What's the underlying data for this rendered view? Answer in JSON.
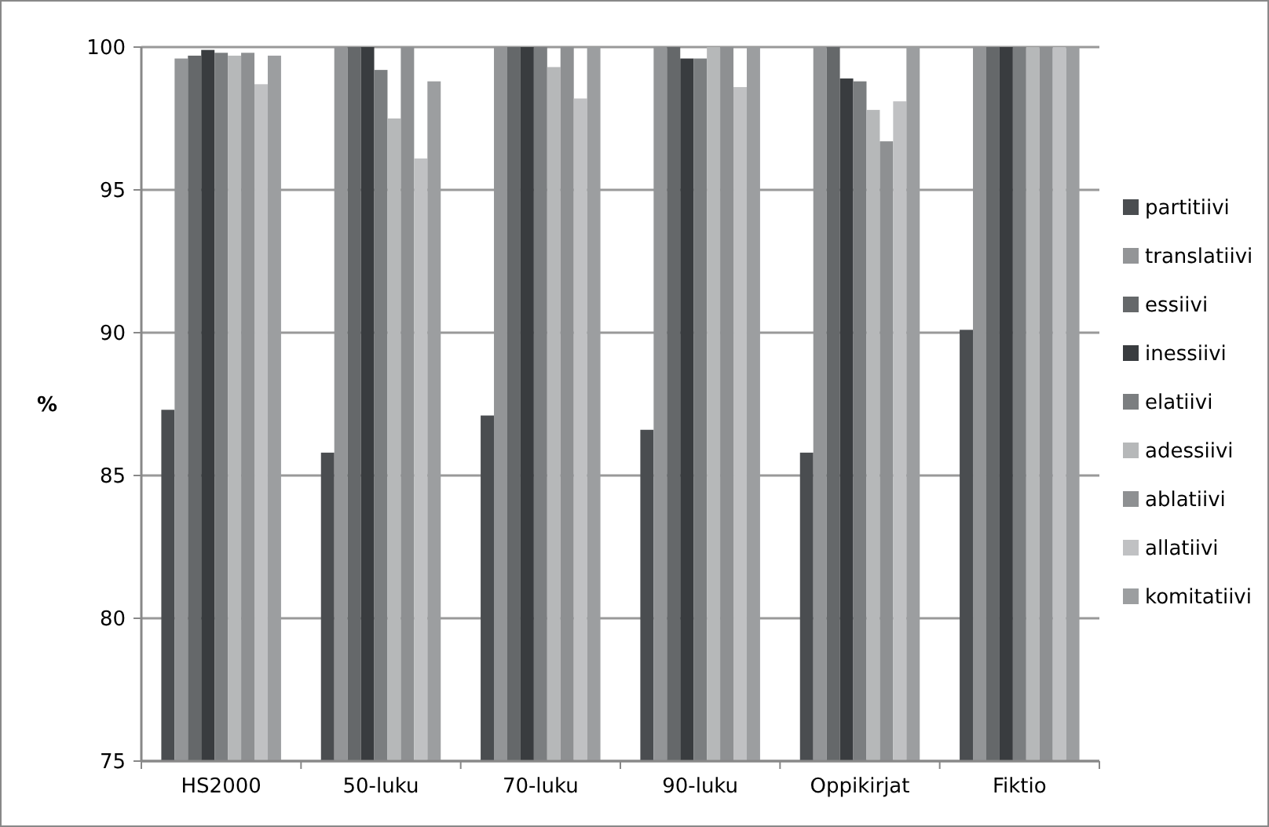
{
  "chart_data": {
    "type": "bar",
    "ylabel": "%",
    "categories": [
      "HS2000",
      "50-luku",
      "70-luku",
      "90-luku",
      "Oppikirjat",
      "Fiktio"
    ],
    "ylim": [
      75,
      100
    ],
    "yticks": [
      75,
      80,
      85,
      90,
      95,
      100
    ],
    "grid": "y",
    "legend": "right",
    "series": [
      {
        "name": "partitiivi",
        "color": "#4a4d50",
        "values": [
          87.3,
          85.8,
          87.1,
          86.6,
          85.8,
          90.1
        ]
      },
      {
        "name": "translatiivi",
        "color": "#939597",
        "values": [
          99.6,
          100,
          100,
          100,
          100,
          100
        ]
      },
      {
        "name": "essiivi",
        "color": "#65686a",
        "values": [
          99.7,
          100,
          100,
          100,
          100,
          100
        ]
      },
      {
        "name": "inessiivi",
        "color": "#393c3f",
        "values": [
          99.9,
          100,
          100,
          99.6,
          98.9,
          100
        ]
      },
      {
        "name": "elatiivi",
        "color": "#7b7e80",
        "values": [
          99.8,
          99.2,
          100,
          99.6,
          98.8,
          100
        ]
      },
      {
        "name": "adessiivi",
        "color": "#b6b8b9",
        "values": [
          99.7,
          97.5,
          99.3,
          100,
          97.8,
          100
        ]
      },
      {
        "name": "ablatiivi",
        "color": "#8e9092",
        "values": [
          99.8,
          100,
          100,
          100,
          96.7,
          100
        ]
      },
      {
        "name": "allatiivi",
        "color": "#c0c1c3",
        "values": [
          98.7,
          96.1,
          98.2,
          98.6,
          98.1,
          100
        ]
      },
      {
        "name": "komitatiivi",
        "color": "#9c9ea0",
        "values": [
          99.7,
          98.8,
          100,
          100,
          100,
          100
        ]
      }
    ]
  }
}
